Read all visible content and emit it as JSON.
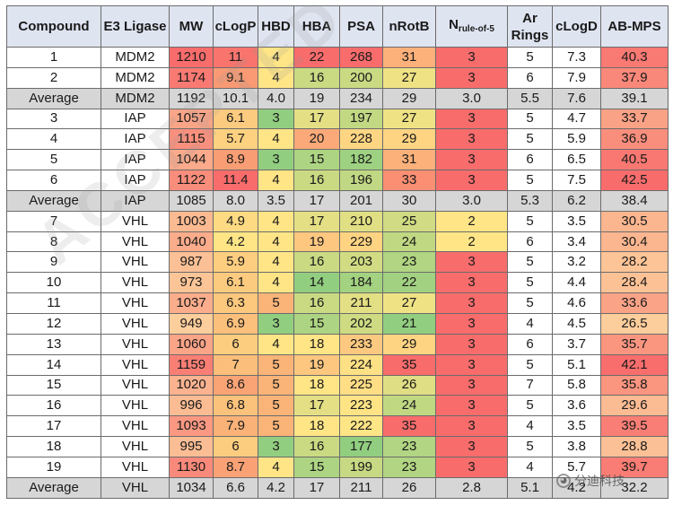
{
  "headers": [
    {
      "key": "compound",
      "label": "Compound"
    },
    {
      "key": "e3",
      "label": "E3 Ligase"
    },
    {
      "key": "mw",
      "label": "MW"
    },
    {
      "key": "clogp",
      "label": "cLogP"
    },
    {
      "key": "hbd",
      "label": "HBD"
    },
    {
      "key": "hba",
      "label": "HBA"
    },
    {
      "key": "psa",
      "label": "PSA"
    },
    {
      "key": "nrotb",
      "label": "nRotB"
    },
    {
      "key": "nro5",
      "label": "N",
      "sub": "rule-of-5"
    },
    {
      "key": "ar",
      "label": "Ar Rings"
    },
    {
      "key": "clogd",
      "label": "cLogD"
    },
    {
      "key": "abmps",
      "label": "AB-MPS"
    }
  ],
  "rows": [
    {
      "type": "data",
      "cells": [
        "1",
        "MDM2",
        "1210",
        "11",
        "4",
        "22",
        "268",
        "31",
        "3",
        "5",
        "7.3",
        "40.3"
      ]
    },
    {
      "type": "data",
      "cells": [
        "2",
        "MDM2",
        "1174",
        "9.1",
        "4",
        "16",
        "200",
        "27",
        "3",
        "6",
        "7.9",
        "37.9"
      ]
    },
    {
      "type": "avg",
      "cells": [
        "Average",
        "MDM2",
        "1192",
        "10.1",
        "4.0",
        "19",
        "234",
        "29",
        "3.0",
        "5.5",
        "7.6",
        "39.1"
      ]
    },
    {
      "type": "data",
      "cells": [
        "3",
        "IAP",
        "1057",
        "6.1",
        "3",
        "17",
        "197",
        "27",
        "3",
        "5",
        "4.7",
        "33.7"
      ]
    },
    {
      "type": "data",
      "cells": [
        "4",
        "IAP",
        "1115",
        "5.7",
        "4",
        "20",
        "228",
        "29",
        "3",
        "5",
        "5.9",
        "36.9"
      ]
    },
    {
      "type": "data",
      "cells": [
        "5",
        "IAP",
        "1044",
        "8.9",
        "3",
        "15",
        "182",
        "31",
        "3",
        "6",
        "6.5",
        "40.5"
      ]
    },
    {
      "type": "data",
      "cells": [
        "6",
        "IAP",
        "1122",
        "11.4",
        "4",
        "16",
        "196",
        "33",
        "3",
        "5",
        "7.5",
        "42.5"
      ]
    },
    {
      "type": "avg",
      "cells": [
        "Average",
        "IAP",
        "1085",
        "8.0",
        "3.5",
        "17",
        "201",
        "30",
        "3.0",
        "5.3",
        "6.2",
        "38.4"
      ]
    },
    {
      "type": "data",
      "cells": [
        "7",
        "VHL",
        "1003",
        "4.9",
        "4",
        "17",
        "210",
        "25",
        "2",
        "5",
        "3.5",
        "30.5"
      ]
    },
    {
      "type": "data",
      "cells": [
        "8",
        "VHL",
        "1040",
        "4.2",
        "4",
        "19",
        "229",
        "24",
        "2",
        "6",
        "3.4",
        "30.4"
      ]
    },
    {
      "type": "data",
      "cells": [
        "9",
        "VHL",
        "987",
        "5.9",
        "4",
        "16",
        "203",
        "23",
        "3",
        "5",
        "3.2",
        "28.2"
      ]
    },
    {
      "type": "data",
      "cells": [
        "10",
        "VHL",
        "973",
        "6.1",
        "4",
        "14",
        "184",
        "22",
        "3",
        "5",
        "4.4",
        "28.4"
      ]
    },
    {
      "type": "data",
      "cells": [
        "11",
        "VHL",
        "1037",
        "6.3",
        "5",
        "16",
        "211",
        "27",
        "3",
        "5",
        "4.6",
        "33.6"
      ]
    },
    {
      "type": "data",
      "cells": [
        "12",
        "VHL",
        "949",
        "6.9",
        "3",
        "15",
        "202",
        "21",
        "3",
        "4",
        "4.5",
        "26.5"
      ]
    },
    {
      "type": "data",
      "cells": [
        "13",
        "VHL",
        "1060",
        "6",
        "4",
        "18",
        "233",
        "29",
        "3",
        "6",
        "3.7",
        "35.7"
      ]
    },
    {
      "type": "data",
      "cells": [
        "14",
        "VHL",
        "1159",
        "7",
        "5",
        "19",
        "224",
        "35",
        "3",
        "5",
        "5.1",
        "42.1"
      ]
    },
    {
      "type": "data",
      "cells": [
        "15",
        "VHL",
        "1020",
        "8.6",
        "5",
        "18",
        "225",
        "26",
        "3",
        "7",
        "5.8",
        "35.8"
      ]
    },
    {
      "type": "data",
      "cells": [
        "16",
        "VHL",
        "996",
        "6.8",
        "5",
        "17",
        "223",
        "24",
        "3",
        "5",
        "3.6",
        "29.6"
      ]
    },
    {
      "type": "data",
      "cells": [
        "17",
        "VHL",
        "1093",
        "7.9",
        "5",
        "18",
        "222",
        "35",
        "3",
        "4",
        "3.5",
        "39.5"
      ]
    },
    {
      "type": "data",
      "cells": [
        "18",
        "VHL",
        "995",
        "6",
        "3",
        "16",
        "177",
        "23",
        "3",
        "5",
        "3.8",
        "28.8"
      ]
    },
    {
      "type": "data",
      "cells": [
        "19",
        "VHL",
        "1130",
        "8.7",
        "4",
        "15",
        "199",
        "23",
        "3",
        "4",
        "5.7",
        "39.7"
      ]
    },
    {
      "type": "avg",
      "cells": [
        "Average",
        "VHL",
        "1034",
        "6.6",
        "4.2",
        "17",
        "211",
        "26",
        "2.8",
        "5.1",
        "4.2",
        "32.2"
      ]
    }
  ],
  "color_scales": {
    "mw": {
      "min": 949,
      "max": 1210,
      "scale": "orange-red"
    },
    "clogp": {
      "min": 4.2,
      "max": 11.4,
      "scale": "yellow-red"
    },
    "hbd": {
      "min": 3,
      "max": 5,
      "scale": "green-orange"
    },
    "hba": {
      "min": 14,
      "max": 22,
      "scale": "green-red"
    },
    "psa": {
      "min": 177,
      "max": 268,
      "scale": "green-red"
    },
    "nrotb": {
      "min": 21,
      "max": 35,
      "scale": "green-red"
    },
    "nro5": {
      "min": 2,
      "max": 3,
      "scale": "yellow-red"
    },
    "abmps": {
      "min": 26.5,
      "max": 42.5,
      "scale": "orange-red"
    }
  },
  "colors": {
    "header_bg": "#dfe4f1",
    "average_bg": "#d6d6d6",
    "border": "#6b6b6b"
  },
  "watermark": "ACCEPTED",
  "badge_text": "分迪科技",
  "badge_icon": "wechat-icon"
}
